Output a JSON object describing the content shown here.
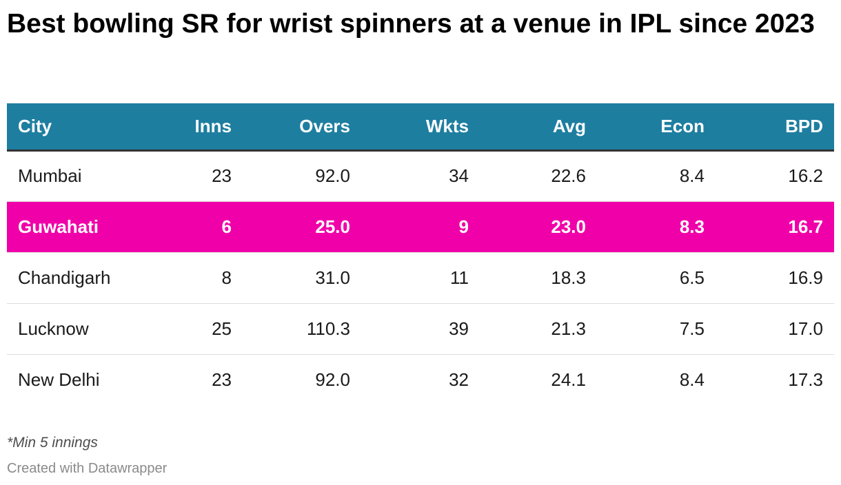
{
  "title": "Best bowling SR for wrist spinners at a venue in IPL since 2023",
  "chart_data": {
    "type": "table",
    "columns": [
      "City",
      "Inns",
      "Overs",
      "Wkts",
      "Avg",
      "Econ",
      "BPD"
    ],
    "rows": [
      {
        "city": "Mumbai",
        "inns": "23",
        "overs": "92.0",
        "wkts": "34",
        "avg": "22.6",
        "econ": "8.4",
        "bpd": "16.2",
        "highlight": false
      },
      {
        "city": "Guwahati",
        "inns": "6",
        "overs": "25.0",
        "wkts": "9",
        "avg": "23.0",
        "econ": "8.3",
        "bpd": "16.7",
        "highlight": true
      },
      {
        "city": "Chandigarh",
        "inns": "8",
        "overs": "31.0",
        "wkts": "11",
        "avg": "18.3",
        "econ": "6.5",
        "bpd": "16.9",
        "highlight": false
      },
      {
        "city": "Lucknow",
        "inns": "25",
        "overs": "110.3",
        "wkts": "39",
        "avg": "21.3",
        "econ": "7.5",
        "bpd": "17.0",
        "highlight": false
      },
      {
        "city": "New Delhi",
        "inns": "23",
        "overs": "92.0",
        "wkts": "32",
        "avg": "24.1",
        "econ": "8.4",
        "bpd": "17.3",
        "highlight": false
      }
    ]
  },
  "colors": {
    "header_bg": "#1e7ea0",
    "header_text": "#ffffff",
    "highlight_bg": "#f000a8",
    "highlight_text": "#ffffff"
  },
  "footnote": "*Min 5 innings",
  "credit": "Created with Datawrapper"
}
